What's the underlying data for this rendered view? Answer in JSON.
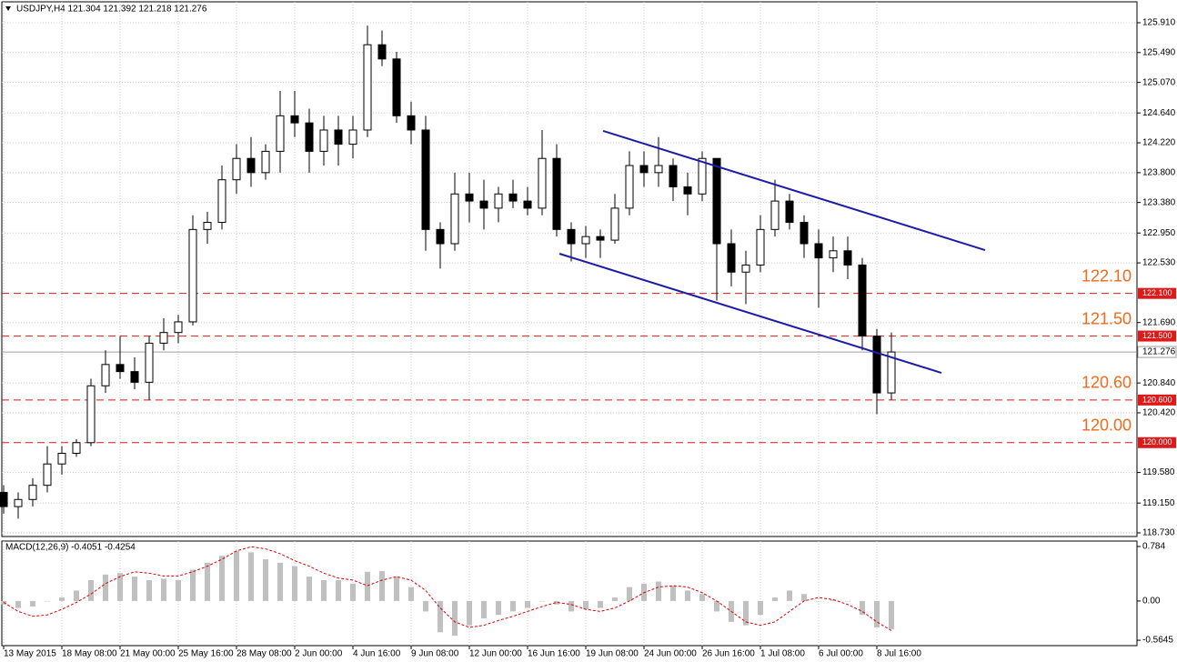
{
  "chart_data": [
    {
      "type": "candlestick",
      "title": "USDJPY,H4  121.304 121.392 121.218 121.276",
      "categories": [
        "13 May 2015",
        null,
        null,
        null,
        "18 May 08:00",
        null,
        null,
        null,
        "21 May 00:00",
        null,
        null,
        null,
        "25 May 16:00",
        null,
        null,
        null,
        "28 May 08:00",
        null,
        null,
        null,
        "2 Jun 00:00",
        null,
        null,
        null,
        "4 Jun 16:00",
        null,
        null,
        null,
        "9 Jun 08:00",
        null,
        null,
        null,
        "12 Jun 00:00",
        null,
        null,
        null,
        "16 Jun 16:00",
        null,
        null,
        null,
        "19 Jun 08:00",
        null,
        null,
        null,
        "24 Jun 00:00",
        null,
        null,
        null,
        "26 Jun 16:00",
        null,
        null,
        null,
        "1 Jul 08:00",
        null,
        null,
        null,
        "6 Jul 00:00",
        null,
        null,
        null,
        "8 Jul 16:00",
        null
      ],
      "open": [
        119.3,
        119.1,
        119.2,
        119.4,
        119.7,
        119.85,
        120.0,
        120.8,
        121.1,
        121.0,
        120.85,
        121.4,
        121.55,
        121.7,
        123.0,
        123.1,
        123.7,
        124.0,
        123.8,
        124.1,
        124.6,
        124.5,
        124.1,
        124.4,
        124.2,
        124.4,
        125.6,
        125.4,
        124.6,
        124.4,
        123.0,
        122.8,
        123.5,
        123.4,
        123.3,
        123.5,
        123.4,
        123.3,
        124.0,
        123.0,
        122.8,
        122.9,
        122.85,
        123.3,
        123.9,
        123.8,
        123.9,
        123.6,
        123.5,
        124.0,
        122.8,
        122.4,
        122.5,
        123.0,
        123.4,
        123.1,
        122.8,
        122.6,
        122.7,
        122.5,
        121.5,
        120.7
      ],
      "high": [
        119.4,
        119.3,
        119.5,
        119.95,
        119.95,
        120.05,
        120.9,
        121.3,
        121.5,
        121.2,
        121.5,
        121.75,
        121.8,
        123.2,
        123.25,
        123.9,
        124.2,
        124.3,
        124.2,
        124.95,
        124.95,
        124.7,
        124.6,
        124.6,
        124.6,
        125.87,
        125.8,
        125.5,
        124.8,
        124.6,
        123.1,
        123.8,
        123.8,
        123.7,
        123.6,
        123.7,
        123.6,
        124.4,
        124.2,
        123.1,
        123.05,
        123.0,
        123.5,
        124.1,
        124.1,
        124.3,
        124.0,
        123.8,
        124.1,
        124.0,
        123.0,
        122.7,
        123.2,
        123.7,
        123.5,
        123.2,
        123.0,
        122.9,
        122.9,
        122.6,
        121.6,
        121.55
      ],
      "low": [
        119.0,
        118.93,
        119.1,
        119.3,
        119.55,
        119.8,
        119.95,
        120.7,
        120.9,
        120.75,
        120.6,
        121.3,
        121.4,
        121.65,
        122.8,
        123.0,
        123.5,
        123.6,
        123.7,
        123.8,
        124.3,
        123.8,
        123.9,
        123.9,
        124.0,
        124.3,
        125.3,
        124.5,
        124.2,
        122.7,
        122.45,
        122.7,
        123.1,
        123.0,
        123.1,
        123.3,
        123.2,
        123.2,
        122.9,
        122.55,
        122.6,
        122.6,
        122.8,
        123.2,
        123.6,
        123.6,
        123.4,
        123.2,
        123.4,
        122.0,
        122.2,
        121.95,
        122.4,
        122.9,
        123.0,
        122.6,
        121.9,
        122.4,
        122.3,
        121.3,
        120.4,
        120.6
      ],
      "close": [
        119.1,
        119.2,
        119.4,
        119.7,
        119.85,
        120.0,
        120.8,
        121.1,
        121.0,
        120.85,
        121.4,
        121.55,
        121.7,
        123.0,
        123.1,
        123.7,
        124.0,
        123.8,
        124.1,
        124.6,
        124.5,
        124.1,
        124.4,
        124.2,
        124.4,
        125.6,
        125.4,
        124.6,
        124.4,
        123.0,
        122.8,
        123.5,
        123.4,
        123.3,
        123.5,
        123.4,
        123.3,
        124.0,
        123.0,
        122.8,
        122.9,
        122.85,
        123.3,
        123.9,
        123.8,
        123.9,
        123.6,
        123.5,
        124.0,
        122.8,
        122.4,
        122.5,
        123.0,
        123.4,
        123.1,
        122.8,
        122.6,
        122.7,
        122.5,
        121.5,
        120.7,
        121.276
      ],
      "ylim": [
        118.679,
        126.204
      ],
      "yticks": [
        {
          "value": 125.91,
          "label": "125.910"
        },
        {
          "value": 125.49,
          "label": "125.490"
        },
        {
          "value": 125.07,
          "label": "125.070"
        },
        {
          "value": 124.64,
          "label": "124.640"
        },
        {
          "value": 124.22,
          "label": "124.220"
        },
        {
          "value": 123.8,
          "label": "123.800"
        },
        {
          "value": 123.38,
          "label": "123.380"
        },
        {
          "value": 122.95,
          "label": "122.950"
        },
        {
          "value": 122.53,
          "label": "122.530"
        },
        {
          "value": 121.69,
          "label": "121.690"
        },
        {
          "value": 120.84,
          "label": "120.840"
        },
        {
          "value": 120.42,
          "label": "120.420"
        },
        {
          "value": 119.58,
          "label": "119.580"
        },
        {
          "value": 119.15,
          "label": "119.150"
        },
        {
          "value": 118.73,
          "label": "118.730"
        }
      ],
      "grid": true,
      "color": "#000000",
      "levels": [
        {
          "value": 122.1,
          "label": "122.10",
          "axis_label": "122.100"
        },
        {
          "value": 121.5,
          "label": "121.50",
          "axis_label": "121.500"
        },
        {
          "value": 120.6,
          "label": "120.60",
          "axis_label": "120.600"
        },
        {
          "value": 120.0,
          "label": "120.00",
          "axis_label": "120.000"
        }
      ],
      "level_color": "#e01818",
      "current_price": {
        "value": 121.276,
        "label": "121.276"
      },
      "trendlines": [
        {
          "x": [
            41.19,
            67.44
          ],
          "y": [
            124.387,
            122.71
          ]
        },
        {
          "x": [
            38.19,
            64.44
          ],
          "y": [
            122.659,
            120.982
          ]
        }
      ],
      "trendline_color": "#1c1ca8"
    },
    {
      "type": "macd",
      "title": "MACD(12,26,9) -0.4051 -0.4254",
      "ylim": [
        -0.642,
        0.862
      ],
      "yticks": [
        0.784,
        {
          "value": 0,
          "label": "0.00"
        },
        -0.5645
      ],
      "series": [
        {
          "kind": "bar",
          "color": "#c0c0c0",
          "values": [
            -0.05,
            -0.1,
            -0.08,
            0.0,
            0.05,
            0.15,
            0.3,
            0.38,
            0.4,
            0.35,
            0.3,
            0.32,
            0.3,
            0.45,
            0.55,
            0.65,
            0.72,
            0.7,
            0.6,
            0.55,
            0.5,
            0.35,
            0.3,
            0.3,
            0.25,
            0.42,
            0.43,
            0.35,
            0.2,
            -0.15,
            -0.45,
            -0.5,
            -0.35,
            -0.25,
            -0.2,
            -0.15,
            -0.1,
            0.0,
            -0.05,
            -0.15,
            -0.12,
            -0.1,
            0.05,
            0.2,
            0.25,
            0.28,
            0.22,
            0.15,
            0.1,
            -0.15,
            -0.3,
            -0.35,
            -0.2,
            0.05,
            0.15,
            0.1,
            0.0,
            0.02,
            0.0,
            -0.2,
            -0.38,
            -0.4051
          ]
        },
        {
          "kind": "line",
          "color": "#e00000",
          "values": [
            -0.02,
            -0.15,
            -0.22,
            -0.2,
            -0.12,
            -0.02,
            0.1,
            0.25,
            0.35,
            0.42,
            0.4,
            0.36,
            0.36,
            0.42,
            0.5,
            0.6,
            0.72,
            0.78,
            0.75,
            0.68,
            0.58,
            0.5,
            0.4,
            0.33,
            0.3,
            0.22,
            0.3,
            0.35,
            0.3,
            0.15,
            -0.1,
            -0.3,
            -0.38,
            -0.35,
            -0.28,
            -0.22,
            -0.15,
            -0.08,
            -0.02,
            -0.05,
            -0.12,
            -0.15,
            -0.1,
            0.0,
            0.12,
            0.2,
            0.22,
            0.2,
            0.12,
            0.0,
            -0.15,
            -0.3,
            -0.35,
            -0.3,
            -0.15,
            0.0,
            0.05,
            0.02,
            -0.05,
            -0.15,
            -0.3,
            -0.4254
          ]
        }
      ]
    }
  ]
}
